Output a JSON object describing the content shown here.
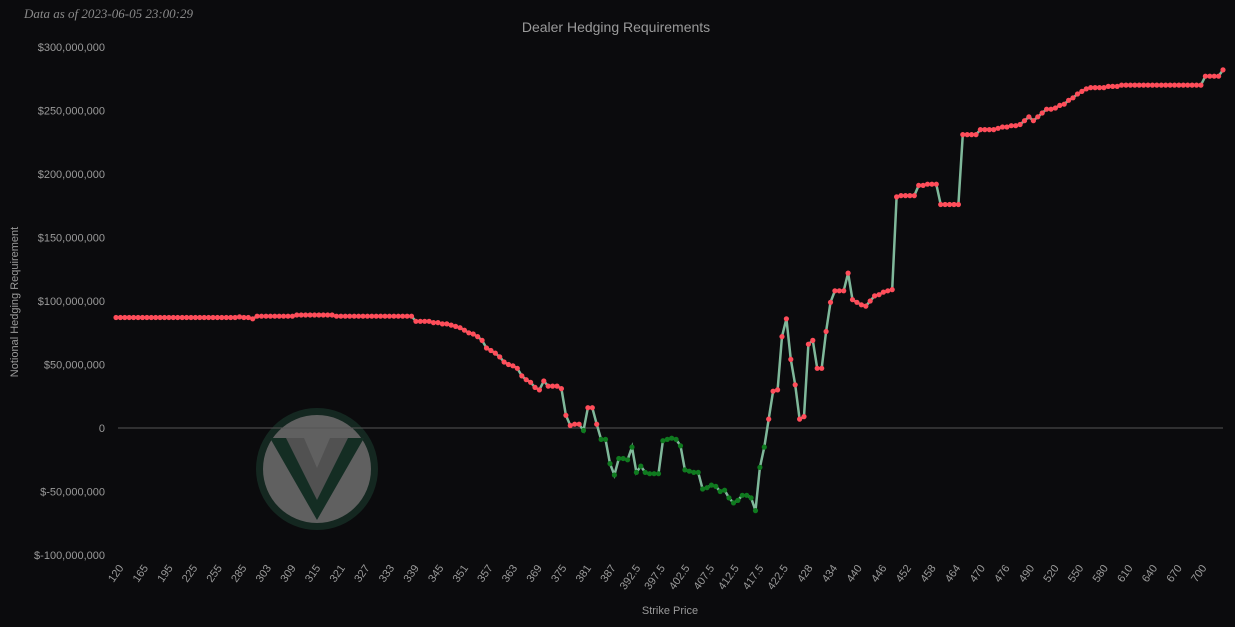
{
  "timestamp": "Data as of 2023-06-05 23:00:29",
  "chart_data": {
    "type": "line",
    "title": "Dealer Hedging Requirements",
    "xlabel": "Strike Price",
    "ylabel": "Notional Hedging Requirement",
    "ylim": [
      -100000000,
      300000000
    ],
    "yticks": [
      300000000,
      250000000,
      200000000,
      150000000,
      100000000,
      50000000,
      0,
      -50000000,
      -100000000
    ],
    "ytick_labels": [
      "$300,000,000",
      "$250,000,000",
      "$200,000,000",
      "$150,000,000",
      "$100,000,000",
      "$50,000,000",
      "0",
      "$-50,000,000",
      "$-100,000,000"
    ],
    "xtick_labels": [
      "120",
      "165",
      "195",
      "225",
      "255",
      "285",
      "303",
      "309",
      "315",
      "321",
      "327",
      "333",
      "339",
      "345",
      "351",
      "357",
      "363",
      "369",
      "375",
      "381",
      "387",
      "392.5",
      "397.5",
      "402.5",
      "407.5",
      "412.5",
      "417.5",
      "422.5",
      "428",
      "434",
      "440",
      "446",
      "452",
      "458",
      "464",
      "470",
      "476",
      "490",
      "520",
      "550",
      "580",
      "610",
      "640",
      "670",
      "700"
    ],
    "colors": {
      "line": "#7fb89a",
      "positive": "#ff4d5a",
      "negative": "#0f7a1f",
      "zero_line": "#555555",
      "logo_ring": "#1c3a2c",
      "logo_fill": "#8a8a8a"
    },
    "legend": "none",
    "grid": false,
    "values": [
      87000000,
      87000000,
      87000000,
      87000000,
      87000000,
      87000000,
      87000000,
      87000000,
      87000000,
      87000000,
      87000000,
      87000000,
      87000000,
      87000000,
      87000000,
      87000000,
      87000000,
      87000000,
      87000000,
      87000000,
      87000000,
      87000000,
      87000000,
      87000000,
      87000000,
      87000000,
      87000000,
      87000000,
      87500000,
      87000000,
      87000000,
      86000000,
      88000000,
      88000000,
      88000000,
      88000000,
      88000000,
      88000000,
      88000000,
      88000000,
      88000000,
      89000000,
      89000000,
      89000000,
      89000000,
      89000000,
      89000000,
      89000000,
      89000000,
      89000000,
      88000000,
      88000000,
      88000000,
      88000000,
      88000000,
      88000000,
      88000000,
      88000000,
      88000000,
      88000000,
      88000000,
      88000000,
      88000000,
      88000000,
      88000000,
      88000000,
      88000000,
      88000000,
      84000000,
      84000000,
      84000000,
      84000000,
      83000000,
      83000000,
      82000000,
      82000000,
      81000000,
      80000000,
      79000000,
      77000000,
      75000000,
      74000000,
      72000000,
      69000000,
      63000000,
      61000000,
      59000000,
      56000000,
      52000000,
      50000000,
      49000000,
      47000000,
      41000000,
      38000000,
      36000000,
      32000000,
      30000000,
      37000000,
      33000000,
      33000000,
      33000000,
      31000000,
      10000000,
      2000000,
      3000000,
      3000000,
      -2000000,
      16000000,
      16000000,
      3000000,
      -9000000,
      -9000000,
      -28000000,
      -37000000,
      -24000000,
      -24000000,
      -25000000,
      -15000000,
      -35000000,
      -30000000,
      -35000000,
      -36000000,
      -36000000,
      -36000000,
      -10000000,
      -9000000,
      -8000000,
      -9000000,
      -14000000,
      -33000000,
      -34000000,
      -35000000,
      -35000000,
      -48000000,
      -47000000,
      -45000000,
      -46000000,
      -50000000,
      -49000000,
      -55000000,
      -59000000,
      -57000000,
      -53000000,
      -53000000,
      -55000000,
      -65000000,
      -31000000,
      -15000000,
      7000000,
      29000000,
      30000000,
      72000000,
      86000000,
      54000000,
      34000000,
      7000000,
      9000000,
      66000000,
      69000000,
      47000000,
      47000000,
      76000000,
      99000000,
      108000000,
      108000000,
      108000000,
      122000000,
      101000000,
      99000000,
      97000000,
      96000000,
      100000000,
      104000000,
      105000000,
      107000000,
      108000000,
      109000000,
      182000000,
      183000000,
      183000000,
      183000000,
      183000000,
      191000000,
      191000000,
      192000000,
      192000000,
      192000000,
      176000000,
      176000000,
      176000000,
      176000000,
      176000000,
      231000000,
      231000000,
      231000000,
      231000000,
      235000000,
      235000000,
      235000000,
      235000000,
      236000000,
      237000000,
      237000000,
      238000000,
      238000000,
      239000000,
      242000000,
      245000000,
      242000000,
      245000000,
      248000000,
      251000000,
      251000000,
      252000000,
      254000000,
      255000000,
      258000000,
      260000000,
      263000000,
      265000000,
      267000000,
      268000000,
      268000000,
      268000000,
      268000000,
      269000000,
      269000000,
      269000000,
      270000000,
      270000000,
      270000000,
      270000000,
      270000000,
      270000000,
      270000000,
      270000000,
      270000000,
      270000000,
      270000000,
      270000000,
      270000000,
      270000000,
      270000000,
      270000000,
      270000000,
      270000000,
      270000000,
      277000000,
      277000000,
      277000000,
      277000000,
      282000000
    ]
  }
}
